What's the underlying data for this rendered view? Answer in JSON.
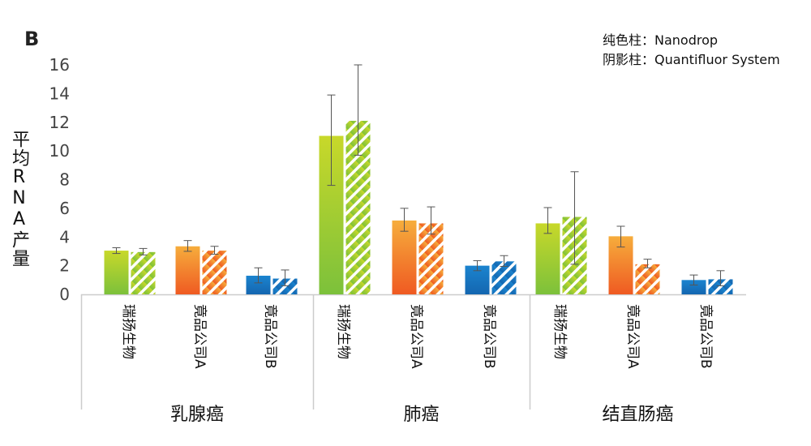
{
  "panel_label": "B",
  "legend": {
    "solid": "纯色柱：Nanodrop",
    "hatched": "阴影柱：Quantifluor System"
  },
  "colors": {
    "green_top": "#c8d82a",
    "green_bottom": "#7cc13b",
    "orange_top": "#f6ad3c",
    "orange_bottom": "#ef5a22",
    "blue_top": "#1b84cf",
    "blue_bottom": "#1466b0",
    "axis": "#cccccc",
    "error": "#555555"
  },
  "chart_data": {
    "type": "bar",
    "title": "",
    "xlabel": "",
    "ylabel": "平均RNA产量",
    "ylim": [
      0,
      16
    ],
    "yticks": [
      0,
      2,
      4,
      6,
      8,
      10,
      12,
      14,
      16
    ],
    "series": [
      {
        "name": "Nanodrop",
        "style": "solid"
      },
      {
        "name": "Quantifluor System",
        "style": "hatched"
      }
    ],
    "groups": [
      {
        "name": "乳腺癌",
        "categories": [
          {
            "label": "瑞扬生物",
            "color": "green",
            "values": [
              3.05,
              2.95
            ],
            "errors": [
              [
                2.85,
                3.25
              ],
              [
                2.75,
                3.2
              ]
            ]
          },
          {
            "label": "竟品公司A",
            "color": "orange",
            "values": [
              3.35,
              3.05
            ],
            "errors": [
              [
                3.0,
                3.75
              ],
              [
                2.8,
                3.35
              ]
            ]
          },
          {
            "label": "竟品公司B",
            "color": "blue",
            "values": [
              1.3,
              1.1
            ],
            "errors": [
              [
                0.8,
                1.85
              ],
              [
                0.6,
                1.7
              ]
            ]
          }
        ]
      },
      {
        "name": "肺癌",
        "categories": [
          {
            "label": "瑞扬生物",
            "color": "green",
            "values": [
              11.05,
              12.1
            ],
            "errors": [
              [
                7.6,
                13.9
              ],
              [
                9.7,
                16.0
              ]
            ]
          },
          {
            "label": "竟品公司A",
            "color": "orange",
            "values": [
              5.15,
              4.95
            ],
            "errors": [
              [
                4.4,
                6.0
              ],
              [
                4.2,
                6.1
              ]
            ]
          },
          {
            "label": "竟品公司B",
            "color": "blue",
            "values": [
              2.0,
              2.3
            ],
            "errors": [
              [
                1.65,
                2.35
              ],
              [
                1.95,
                2.7
              ]
            ]
          }
        ]
      },
      {
        "name": "结直肠癌",
        "categories": [
          {
            "label": "瑞扬生物",
            "color": "green",
            "values": [
              4.95,
              5.4
            ],
            "errors": [
              [
                4.25,
                6.05
              ],
              [
                2.1,
                8.55
              ]
            ]
          },
          {
            "label": "竟品公司A",
            "color": "orange",
            "values": [
              4.05,
              2.1
            ],
            "errors": [
              [
                3.3,
                4.75
              ],
              [
                1.85,
                2.45
              ]
            ]
          },
          {
            "label": "竟品公司B",
            "color": "blue",
            "values": [
              1.0,
              1.05
            ],
            "errors": [
              [
                0.65,
                1.35
              ],
              [
                0.6,
                1.65
              ]
            ]
          }
        ]
      }
    ]
  }
}
